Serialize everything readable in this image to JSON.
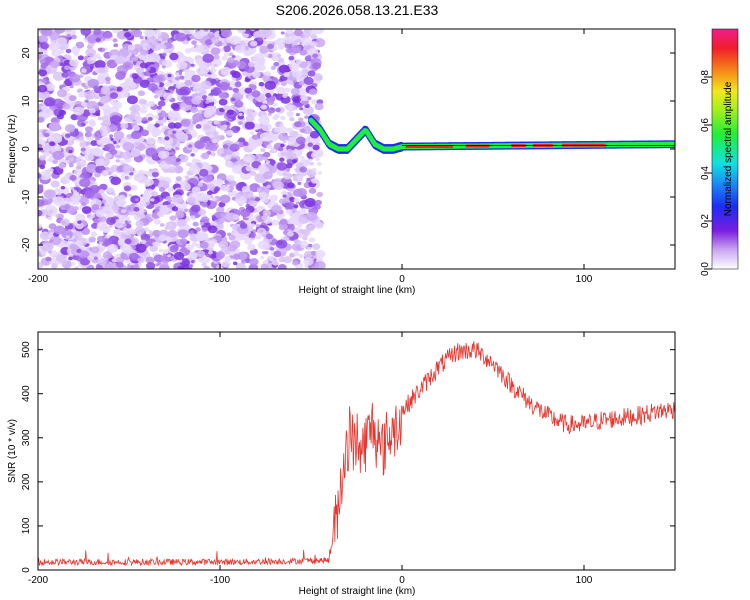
{
  "chart_data": [
    {
      "type": "heatmap",
      "title": "S206.2026.058.13.21.E33",
      "xlabel": "Height of straight line (km)",
      "ylabel": "Frequency (Hz)",
      "xlim": [
        -200,
        150
      ],
      "ylim": [
        -25,
        25
      ],
      "xticks": [
        -200,
        -100,
        0,
        100
      ],
      "yticks": [
        20,
        10,
        0,
        -10,
        -20
      ],
      "colorbar": {
        "label": "Normalized spectral amplitude",
        "range": [
          0.0,
          1.0
        ],
        "ticks": [
          "0.0",
          "0.2",
          "0.4",
          "0.6",
          "0.8"
        ]
      },
      "features": {
        "noise_region_x": [
          -200,
          -48
        ],
        "frequency_trace": [
          {
            "x": -50,
            "y": 6
          },
          {
            "x": -45,
            "y": 4
          },
          {
            "x": -40,
            "y": 1
          },
          {
            "x": -35,
            "y": 0
          },
          {
            "x": -30,
            "y": 0
          },
          {
            "x": -25,
            "y": 2
          },
          {
            "x": -20,
            "y": 4
          },
          {
            "x": -15,
            "y": 1
          },
          {
            "x": -10,
            "y": 0
          },
          {
            "x": -5,
            "y": 0
          },
          {
            "x": 0,
            "y": 0.5
          },
          {
            "x": 150,
            "y": 1
          }
        ]
      }
    },
    {
      "type": "line",
      "xlabel": "Height of straight line (km)",
      "ylabel": "SNR (10 * v/v)",
      "xlim": [
        -200,
        150
      ],
      "ylim": [
        0,
        540
      ],
      "xticks": [
        -200,
        -100,
        0,
        100
      ],
      "yticks": [
        0,
        100,
        200,
        300,
        400,
        500
      ],
      "series": [
        {
          "name": "SNR",
          "color": "#e8342c",
          "x": [
            -200,
            -150,
            -100,
            -60,
            -40,
            -36,
            -32,
            -28,
            -24,
            -20,
            -16,
            -12,
            -8,
            -4,
            0,
            10,
            20,
            30,
            40,
            50,
            60,
            70,
            80,
            90,
            100,
            110,
            120,
            130,
            140,
            150
          ],
          "values": [
            18,
            18,
            18,
            20,
            22,
            120,
            250,
            300,
            260,
            290,
            330,
            260,
            300,
            320,
            360,
            410,
            460,
            495,
            500,
            470,
            420,
            380,
            350,
            330,
            330,
            340,
            345,
            350,
            360,
            365
          ]
        }
      ]
    }
  ]
}
